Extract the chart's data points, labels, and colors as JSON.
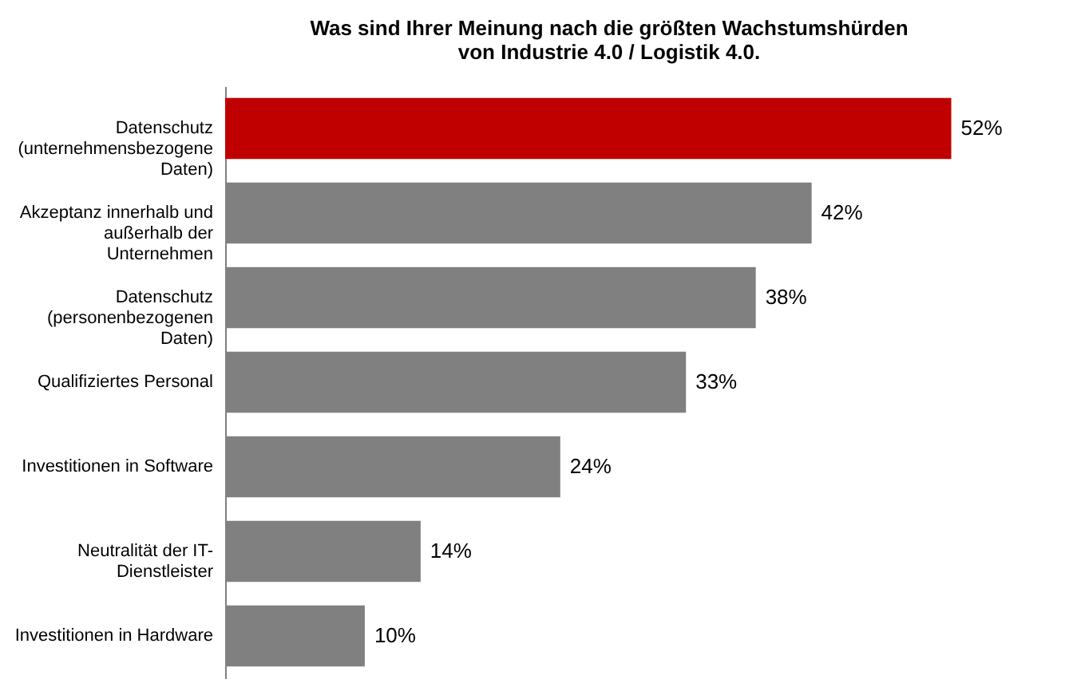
{
  "chart_data": {
    "type": "bar",
    "orientation": "horizontal",
    "title": "Was sind Ihrer Meinung nach die größten Wachstumshürden\nvon Industrie 4.0 / Logistik 4.0.",
    "categories": [
      "Datenschutz\n(unternehmensbezogene\nDaten)",
      "Akzeptanz innerhalb und\naußerhalb der\nUnternehmen",
      "Datenschutz\n(personenbezogenen\nDaten)",
      "Qualifiziertes Personal",
      "Investitionen in Software",
      "Neutralität der IT-\nDienstleister",
      "Investitionen in Hardware"
    ],
    "values": [
      52,
      42,
      38,
      33,
      24,
      14,
      10
    ],
    "colors": [
      "#c00000",
      "#808080",
      "#808080",
      "#808080",
      "#808080",
      "#808080",
      "#808080"
    ],
    "value_labels": [
      "52%",
      "42%",
      "38%",
      "33%",
      "24%",
      "14%",
      "10%"
    ],
    "grid": false
  }
}
